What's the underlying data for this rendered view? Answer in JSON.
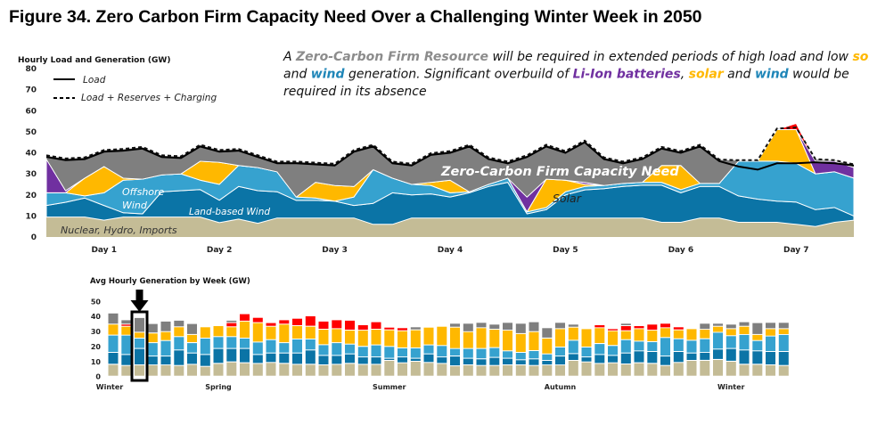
{
  "title": "Figure 34. Zero Carbon Firm Capacity Need Over a Challenging Winter Week in 2050",
  "annotation": {
    "lines": [
      [
        {
          "text": "A ",
          "color": "text"
        },
        {
          "text": "Zero-Carbon  Firm Resource",
          "color": "firm"
        },
        {
          "text": " will be required in extended periods of high load and low ",
          "color": "text"
        },
        {
          "text": "solar",
          "color": "solar"
        }
      ],
      [
        {
          "text": "and ",
          "color": "text"
        },
        {
          "text": "wind",
          "color": "wind"
        },
        {
          "text": " generation. Significant overbuild of ",
          "color": "text"
        },
        {
          "text": "Li-Ion batteries",
          "color": "battery"
        },
        {
          "text": ", ",
          "color": "text"
        },
        {
          "text": "solar",
          "color": "solar"
        },
        {
          "text": " and ",
          "color": "text"
        },
        {
          "text": "wind",
          "color": "wind"
        },
        {
          "text": " would be",
          "color": "text"
        }
      ],
      [
        {
          "text": "required in its absence",
          "color": "text"
        }
      ]
    ]
  },
  "colors": {
    "text": "#111111",
    "firm": "#8c8c8c",
    "gray": "#7f7f7f",
    "solar": "#ffb800",
    "wind": "#1f86b8",
    "battery": "#7030a0",
    "nuclear": "#c4bc96",
    "land_wind": "#0b74a6",
    "offshore_wind": "#36a2cf",
    "red": "#ff0000"
  },
  "chart_data": [
    {
      "type": "area",
      "stacked": true,
      "ylabel": "Hourly Load and Generation (GW)",
      "ylim": [
        0,
        80
      ],
      "yticks": [
        0,
        10,
        20,
        30,
        40,
        50,
        60,
        70,
        80
      ],
      "x_unit": "hour",
      "xlim": [
        0,
        168
      ],
      "x": [
        0,
        4,
        8,
        12,
        16,
        20,
        24,
        28,
        32,
        36,
        40,
        44,
        48,
        52,
        56,
        60,
        64,
        68,
        72,
        76,
        80,
        84,
        88,
        92,
        96,
        100,
        104,
        108,
        112,
        116,
        120,
        124,
        128,
        132,
        136,
        140,
        144,
        148,
        152,
        156,
        160,
        164,
        168
      ],
      "xtick_labels": [
        {
          "hour": 12,
          "label": "Day 1"
        },
        {
          "hour": 36,
          "label": "Day 2"
        },
        {
          "hour": 60,
          "label": "Day 3"
        },
        {
          "hour": 84,
          "label": "Day 4"
        },
        {
          "hour": 108,
          "label": "Day 5"
        },
        {
          "hour": 132,
          "label": "Day 6"
        },
        {
          "hour": 156,
          "label": "Day 7"
        }
      ],
      "legend": [
        {
          "label": "Load",
          "style": "solid"
        },
        {
          "label": "Load + Reserves + Charging",
          "style": "dashed"
        }
      ],
      "legend_position": "top-left",
      "area_labels": {
        "nuclear": "Nuclear, Hydro, Imports",
        "land_wind": "Land-based Wind",
        "offshore_wind": [
          "Offshore",
          "Wind"
        ],
        "solar": "Solar",
        "firm": "Zero-Carbon Firm Capacity Need"
      },
      "series": [
        {
          "key": "nuclear",
          "values": [
            9.5,
            9.5,
            9.5,
            8,
            9.5,
            9.5,
            9.5,
            9.5,
            9.5,
            6.8,
            8.5,
            6.5,
            9,
            9,
            9,
            9,
            9,
            6,
            6,
            9,
            9,
            9,
            9,
            9,
            9,
            9,
            9,
            9,
            9,
            9,
            9,
            9,
            7,
            7,
            9,
            9,
            7,
            7,
            7,
            6,
            5,
            7,
            8
          ]
        },
        {
          "key": "land_wind",
          "values": [
            5.5,
            7,
            9,
            7,
            2,
            1.5,
            12,
            12.5,
            13,
            10.7,
            15.5,
            15.5,
            12.5,
            8.4,
            8.4,
            8,
            6,
            10,
            15,
            11,
            11.5,
            10,
            12,
            15,
            17,
            2,
            4,
            11,
            13.4,
            14,
            15,
            15.6,
            17.6,
            14,
            15,
            15,
            12.5,
            11,
            10,
            10.6,
            8,
            7,
            2
          ]
        },
        {
          "key": "offshore_wind",
          "values": [
            6,
            4.5,
            1,
            6,
            15.5,
            16.5,
            8,
            8,
            4.5,
            7.5,
            10,
            11,
            9.5,
            1.6,
            1.1,
            0,
            4,
            16,
            7,
            5,
            4,
            2,
            0.5,
            1,
            2,
            1,
            1,
            1.5,
            1.6,
            1.5,
            1.5,
            1.4,
            1.4,
            1.5,
            1.5,
            1.5,
            16.5,
            18,
            19,
            18.4,
            17,
            17,
            18
          ]
        },
        {
          "key": "solar",
          "values": [
            0,
            0,
            8.5,
            12.5,
            1,
            0,
            0,
            0,
            9,
            10.5,
            0,
            0,
            0,
            0,
            7.5,
            7.5,
            5,
            0,
            0,
            0,
            1.5,
            6,
            0,
            0,
            0,
            0,
            13.5,
            5.5,
            1,
            0,
            0,
            0,
            8,
            11.5,
            0,
            0,
            0,
            0,
            15,
            16,
            0,
            0,
            0
          ]
        },
        {
          "key": "battery",
          "values": [
            16,
            1,
            0,
            0,
            0,
            0,
            0,
            0,
            0,
            0,
            0,
            0,
            0,
            0,
            0,
            0,
            0,
            0,
            0,
            0,
            0,
            0,
            0,
            0,
            0,
            7,
            0,
            0,
            1,
            0,
            0,
            0,
            0,
            0,
            0,
            0,
            0,
            0,
            0,
            0,
            6,
            5,
            5
          ]
        },
        {
          "key": "red",
          "values": [
            0,
            0,
            0,
            0,
            0,
            0,
            0,
            0,
            0,
            0,
            0,
            0,
            0,
            0,
            0,
            0,
            0,
            0,
            0,
            0,
            0,
            0,
            0,
            0,
            0,
            0,
            0,
            0,
            0,
            0,
            0,
            0,
            0,
            0,
            0,
            0,
            0,
            0,
            0,
            3,
            0,
            0,
            0
          ]
        },
        {
          "key": "load",
          "name": "Load",
          "type": "line",
          "values": [
            38,
            36.5,
            37,
            40.5,
            41,
            42,
            38,
            37.5,
            43,
            40.5,
            41,
            38,
            35,
            35,
            34.5,
            34,
            40.5,
            43,
            35,
            34,
            39,
            40,
            43,
            37,
            35,
            38,
            43,
            40,
            45,
            37,
            35,
            37,
            42,
            40,
            43,
            36,
            33.5,
            32,
            35,
            35,
            35.5,
            35,
            34
          ]
        },
        {
          "key": "load_reserves_charging",
          "name": "Load + Reserves + Charging",
          "type": "line",
          "values": [
            38.8,
            37.3,
            37.8,
            41.3,
            41.8,
            42.8,
            38.8,
            38.3,
            43.8,
            41.3,
            41.8,
            38.8,
            35.8,
            35.8,
            35.3,
            34.8,
            41.3,
            43.8,
            35.8,
            34.8,
            39.8,
            40.8,
            43.8,
            37.8,
            35.8,
            38.8,
            43.8,
            40.8,
            45.8,
            37.8,
            35.8,
            37.8,
            42.8,
            40.8,
            43.8,
            36.8,
            36.5,
            36.5,
            51.5,
            52,
            37,
            36.5,
            34.5
          ]
        }
      ]
    },
    {
      "type": "bar",
      "stacked": true,
      "title": "Avg Hourly Generation by Week (GW)",
      "ylim": [
        0,
        50
      ],
      "yticks": [
        0,
        10,
        20,
        30,
        40,
        50
      ],
      "weeks": 52,
      "highlight_week": 3,
      "xtick_labels": [
        {
          "week": 1,
          "label": "Winter"
        },
        {
          "week": 9,
          "label": "Spring"
        },
        {
          "week": 22,
          "label": "Summer"
        },
        {
          "week": 35,
          "label": "Autumn"
        },
        {
          "week": 48,
          "label": "Winter"
        }
      ],
      "series": [
        {
          "key": "nuclear",
          "values": [
            7.9,
            7.1,
            7.5,
            7.5,
            7.5,
            7.1,
            7.9,
            6.5,
            8.5,
            9.5,
            8.9,
            8.5,
            9.1,
            8.5,
            7.9,
            7.9,
            7.5,
            7.9,
            8.5,
            7.9,
            7.9,
            10.5,
            8.9,
            9.9,
            9.1,
            8.5,
            6.9,
            7.5,
            7.1,
            7.1,
            7.5,
            7.5,
            7.1,
            7.5,
            7.5,
            10.5,
            9.5,
            8.5,
            8.9,
            8.1,
            8.9,
            8.5,
            7.1,
            9.1,
            10.5,
            10.5,
            11.1,
            9.9,
            7.9,
            7.9,
            7.5,
            7.1
          ]
        },
        {
          "key": "land_wind",
          "values": [
            7.9,
            7.3,
            10.9,
            5.9,
            5.9,
            10.3,
            7.5,
            7.9,
            9.9,
            8.9,
            9.5,
            5.9,
            6.3,
            6.9,
            7.5,
            9.5,
            6.3,
            5.9,
            6.3,
            4.9,
            4.9,
            1.4,
            3.9,
            2.0,
            5.7,
            4.3,
            6.5,
            4.4,
            4.4,
            5.4,
            4.4,
            3.4,
            4.4,
            3.0,
            5.9,
            4.5,
            3.3,
            5.9,
            4.9,
            7.3,
            7.9,
            7.9,
            6.3,
            7.3,
            4.9,
            5.3,
            6.9,
            8.5,
            9.5,
            8.9,
            8.9,
            9.3
          ]
        },
        {
          "key": "offshore_wind",
          "values": [
            11.5,
            12.9,
            6.9,
            8.9,
            10.3,
            8.9,
            6.9,
            10.9,
            7.9,
            7.9,
            6.9,
            8.3,
            8.9,
            6.9,
            9.3,
            7.3,
            7.1,
            8.5,
            6.5,
            7.0,
            8.0,
            7.9,
            6.0,
            6.9,
            6.0,
            7.6,
            5.0,
            6.5,
            6.9,
            6.5,
            4.9,
            4.9,
            5.5,
            4.3,
            6.0,
            8.9,
            6.6,
            7.3,
            6.6,
            8.9,
            6.5,
            6.5,
            12.3,
            8.5,
            8.5,
            9.1,
            11.2,
            8.5,
            10.3,
            6.9,
            10.3,
            11.3
          ]
        },
        {
          "key": "solar",
          "values": [
            7.3,
            5.9,
            3.9,
            6.4,
            5.9,
            6.5,
            5.4,
            7.5,
            7.3,
            6.5,
            11.3,
            12.9,
            8.9,
            12.3,
            8.9,
            8.5,
            10.3,
            9.3,
            9.3,
            10.8,
            10.4,
            11.0,
            11.4,
            12.0,
            11.8,
            12.8,
            14.2,
            11.2,
            13.8,
            12.2,
            13.8,
            12.5,
            12.6,
            10.5,
            12.2,
            8.7,
            12.2,
            10.5,
            9.8,
            5.9,
            8.3,
            7.7,
            6.5,
            5.9,
            7.7,
            6.3,
            4.0,
            4.7,
            5.5,
            4.0,
            4.9,
            3.9
          ]
        },
        {
          "key": "red",
          "values": [
            0,
            1.4,
            0,
            0,
            0,
            0,
            0,
            0,
            0,
            2.8,
            4.9,
            3.5,
            2.4,
            2.9,
            4.9,
            6.9,
            5.4,
            5.9,
            6.6,
            3.6,
            5.0,
            1.8,
            2.0,
            0,
            0,
            0,
            0,
            0,
            0,
            0,
            0,
            0,
            0,
            0,
            0,
            0,
            0,
            2.0,
            1.4,
            3.4,
            2.0,
            4.0,
            3.0,
            2.0,
            0,
            0,
            0,
            0,
            0,
            0,
            0,
            0
          ]
        },
        {
          "key": "firm",
          "values": [
            7.4,
            2.9,
            9.8,
            6.3,
            7.0,
            4.4,
            7.3,
            0,
            0,
            1.6,
            0,
            0,
            0,
            0,
            0,
            0,
            0,
            0,
            0,
            0,
            0,
            0,
            0,
            2.0,
            0,
            0,
            2.6,
            5.6,
            3.6,
            3.4,
            5.2,
            6.9,
            6.6,
            6.9,
            4.2,
            2.0,
            0,
            0,
            0,
            1.6,
            0,
            0,
            0,
            0,
            0,
            4.0,
            2.0,
            3.0,
            3.0,
            7.9,
            4.2,
            4.2
          ]
        }
      ]
    }
  ]
}
